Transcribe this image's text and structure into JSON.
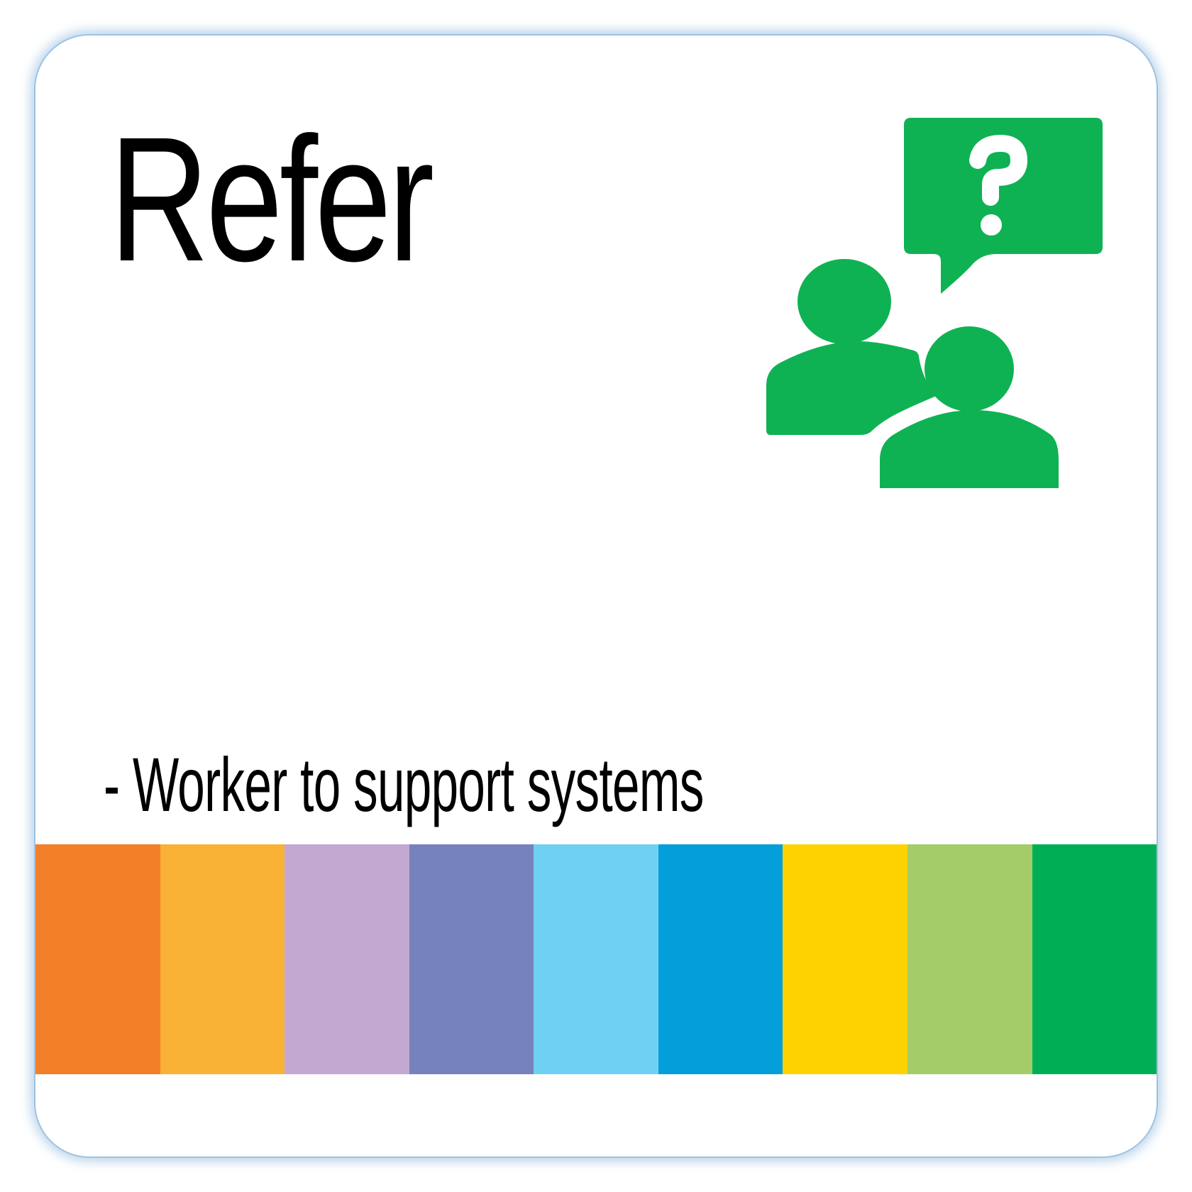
{
  "card": {
    "title": "Refer",
    "subtitle": "- Worker to support systems",
    "icon": "people-question-speech-bubble-icon",
    "icon_color": "#0FB253"
  },
  "color_strip": {
    "colors": [
      "#F47F29",
      "#F9B236",
      "#C3A9D2",
      "#7682BD",
      "#70D0F4",
      "#049FDB",
      "#FDD200",
      "#A4CD69",
      "#00AF55"
    ]
  }
}
